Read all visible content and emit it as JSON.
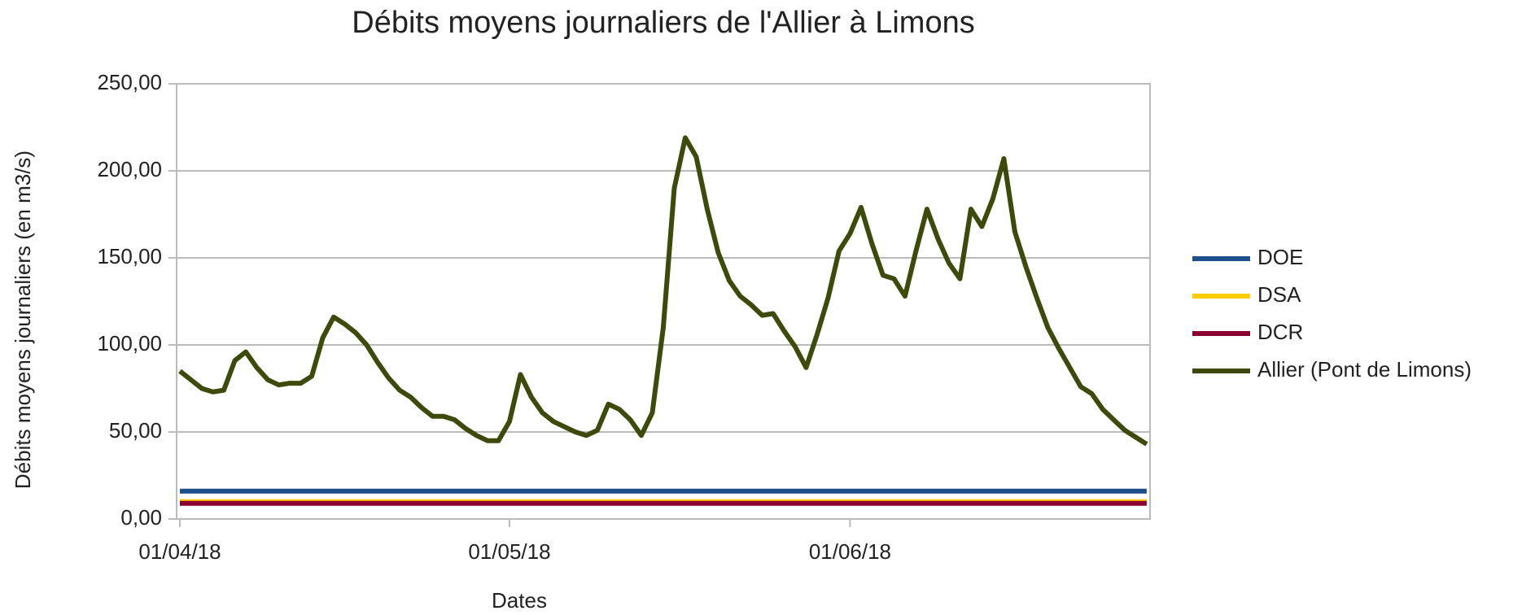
{
  "chart_data": {
    "type": "line",
    "title": "Débits moyens journaliers de l'Allier à Limons",
    "x_label": "Dates",
    "y_label": "Débits moyens journaliers (en m3/s)",
    "categories": [
      "01/04/18",
      null,
      null,
      null,
      null,
      null,
      null,
      null,
      null,
      null,
      null,
      null,
      null,
      null,
      null,
      null,
      null,
      null,
      null,
      null,
      null,
      null,
      null,
      null,
      null,
      null,
      null,
      null,
      null,
      null,
      "01/05/18",
      null,
      null,
      null,
      null,
      null,
      null,
      null,
      null,
      null,
      null,
      null,
      null,
      null,
      null,
      null,
      null,
      null,
      null,
      null,
      null,
      null,
      null,
      null,
      null,
      null,
      null,
      null,
      null,
      null,
      null,
      "01/06/18",
      null,
      null,
      null,
      null,
      null,
      null,
      null,
      null,
      null,
      null,
      null,
      null,
      null,
      null,
      null,
      null,
      null,
      null,
      null,
      null,
      null,
      null,
      null,
      null,
      null,
      null,
      null
    ],
    "series": [
      {
        "name": "DOE",
        "color": "#1f4e8c",
        "values": [
          16,
          16,
          16,
          16,
          16,
          16,
          16,
          16,
          16,
          16,
          16,
          16,
          16,
          16,
          16,
          16,
          16,
          16,
          16,
          16,
          16,
          16,
          16,
          16,
          16,
          16,
          16,
          16,
          16,
          16,
          16,
          16,
          16,
          16,
          16,
          16,
          16,
          16,
          16,
          16,
          16,
          16,
          16,
          16,
          16,
          16,
          16,
          16,
          16,
          16,
          16,
          16,
          16,
          16,
          16,
          16,
          16,
          16,
          16,
          16,
          16,
          16,
          16,
          16,
          16,
          16,
          16,
          16,
          16,
          16,
          16,
          16,
          16,
          16,
          16,
          16,
          16,
          16,
          16,
          16,
          16,
          16,
          16,
          16,
          16,
          16,
          16,
          16,
          16
        ]
      },
      {
        "name": "DSA",
        "color": "#ffcc00",
        "values": [
          10,
          10,
          10,
          10,
          10,
          10,
          10,
          10,
          10,
          10,
          10,
          10,
          10,
          10,
          10,
          10,
          10,
          10,
          10,
          10,
          10,
          10,
          10,
          10,
          10,
          10,
          10,
          10,
          10,
          10,
          10,
          10,
          10,
          10,
          10,
          10,
          10,
          10,
          10,
          10,
          10,
          10,
          10,
          10,
          10,
          10,
          10,
          10,
          10,
          10,
          10,
          10,
          10,
          10,
          10,
          10,
          10,
          10,
          10,
          10,
          10,
          10,
          10,
          10,
          10,
          10,
          10,
          10,
          10,
          10,
          10,
          10,
          10,
          10,
          10,
          10,
          10,
          10,
          10,
          10,
          10,
          10,
          10,
          10,
          10,
          10,
          10,
          10,
          10
        ]
      },
      {
        "name": "DCR",
        "color": "#8b0030",
        "values": [
          9,
          9,
          9,
          9,
          9,
          9,
          9,
          9,
          9,
          9,
          9,
          9,
          9,
          9,
          9,
          9,
          9,
          9,
          9,
          9,
          9,
          9,
          9,
          9,
          9,
          9,
          9,
          9,
          9,
          9,
          9,
          9,
          9,
          9,
          9,
          9,
          9,
          9,
          9,
          9,
          9,
          9,
          9,
          9,
          9,
          9,
          9,
          9,
          9,
          9,
          9,
          9,
          9,
          9,
          9,
          9,
          9,
          9,
          9,
          9,
          9,
          9,
          9,
          9,
          9,
          9,
          9,
          9,
          9,
          9,
          9,
          9,
          9,
          9,
          9,
          9,
          9,
          9,
          9,
          9,
          9,
          9,
          9,
          9,
          9,
          9,
          9,
          9,
          9
        ]
      },
      {
        "name": "Allier (Pont de Limons)",
        "color": "#3d4a0b",
        "values": [
          85,
          80,
          75,
          73,
          74,
          91,
          96,
          87,
          80,
          77,
          78,
          78,
          82,
          104,
          116,
          112,
          107,
          100,
          90,
          81,
          74,
          70,
          64,
          59,
          59,
          57,
          52,
          48,
          45,
          45,
          56,
          83,
          70,
          61,
          56,
          53,
          50,
          48,
          51,
          66,
          63,
          57,
          48,
          61,
          110,
          190,
          219,
          208,
          178,
          153,
          137,
          128,
          123,
          117,
          118,
          108,
          99,
          87,
          106,
          127,
          154,
          164,
          179,
          158,
          140,
          138,
          128,
          154,
          178,
          161,
          147,
          138,
          178,
          168,
          184,
          207,
          165,
          145,
          127,
          110,
          98,
          87,
          76,
          72,
          63,
          57,
          51,
          47,
          43
        ]
      }
    ],
    "ylim": [
      0,
      250
    ],
    "yticks": [
      {
        "value": 0,
        "label": "0,00"
      },
      {
        "value": 50,
        "label": "50,00"
      },
      {
        "value": 100,
        "label": "100,00"
      },
      {
        "value": 150,
        "label": "150,00"
      },
      {
        "value": 200,
        "label": "200,00"
      },
      {
        "value": 250,
        "label": "250,00"
      }
    ],
    "grid": true,
    "legend": "right"
  }
}
